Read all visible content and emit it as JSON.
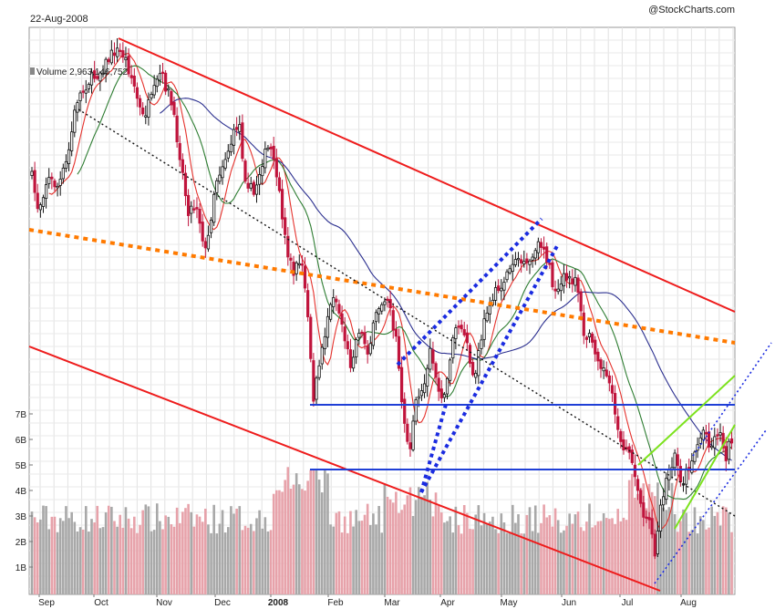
{
  "header": {
    "date": "22-Aug-2008",
    "brand": "@StockCharts.com",
    "volume_label": "Volume 2,963,146,752"
  },
  "colors": {
    "up_candle": "#111111",
    "down_candle": "#c0143c",
    "vol_up": "#a8a8a8",
    "vol_down": "#e7a2aa",
    "ma_short": "#e5322d",
    "ma_mid": "#2e7d32",
    "ma_long": "#2b2f8f",
    "channel": "#ee1c1c",
    "support": "#1f3fd6",
    "orange_trend": "#ff7a00",
    "green_trend": "#7ce21d",
    "dotted_trend": "#1a2be0",
    "black_trend": "#111111"
  },
  "chart_data": {
    "type": "candlestick",
    "title": "",
    "x_month_labels": [
      "Sep",
      "Oct",
      "Nov",
      "Dec",
      "2008",
      "Feb",
      "Mar",
      "Apr",
      "May",
      "Jun",
      "Jul",
      "Aug"
    ],
    "volume_axis_labels": [
      "7B",
      "6B",
      "5B",
      "4B",
      "3B",
      "2B",
      "1B"
    ],
    "volume_axis_values": [
      7,
      6,
      5,
      4,
      3,
      2,
      1
    ],
    "volume_unit": "B",
    "start_date": "2007-09-04",
    "end_date": "2008-08-22",
    "horizontal_levels_volume_scale": [
      7.0,
      4.8
    ],
    "annotations": [
      "red descending price channel",
      "blue horizontal support/resistance lines",
      "orange dotted long-term trendline",
      "black dotted trendline",
      "blue dotted rising channel Mar-May",
      "green rising wedge and blue dotted lines Jul-Aug"
    ],
    "moving_averages": [
      "short",
      "mid",
      "long"
    ]
  }
}
